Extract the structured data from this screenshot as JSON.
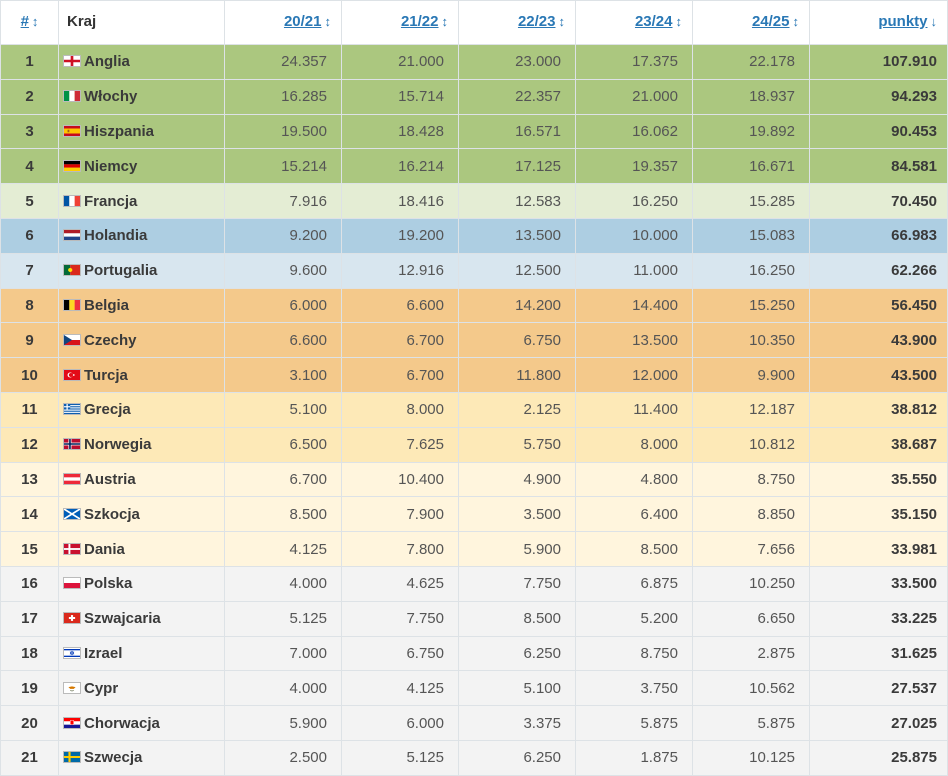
{
  "header": {
    "pos_label": "#",
    "country_label": "Kraj",
    "seasons": [
      "20/21",
      "21/22",
      "22/23",
      "23/24",
      "24/25"
    ],
    "points_label": "punkty",
    "sort_icon": "↕",
    "sort_active_icon": "↓"
  },
  "colors": {
    "cl": "#abc77f",
    "cl_light": "#e4edd4",
    "blue": "#adcee2",
    "blue_light": "#d8e6ef",
    "orange": "#f4c98b",
    "yellow": "#fde9b7",
    "yellow_light": "#fff5dd",
    "gray": "#f3f3f3"
  },
  "rows": [
    {
      "pos": "1",
      "country": "Anglia",
      "flag": "england-flag",
      "zone": "cl",
      "s1": "24.357",
      "s2": "21.000",
      "s3": "23.000",
      "s4": "17.375",
      "s5": "22.178",
      "pts": "107.910"
    },
    {
      "pos": "2",
      "country": "Włochy",
      "flag": "italy-flag",
      "zone": "cl",
      "s1": "16.285",
      "s2": "15.714",
      "s3": "22.357",
      "s4": "21.000",
      "s5": "18.937",
      "pts": "94.293"
    },
    {
      "pos": "3",
      "country": "Hiszpania",
      "flag": "spain-flag",
      "zone": "cl",
      "s1": "19.500",
      "s2": "18.428",
      "s3": "16.571",
      "s4": "16.062",
      "s5": "19.892",
      "pts": "90.453"
    },
    {
      "pos": "4",
      "country": "Niemcy",
      "flag": "germany-flag",
      "zone": "cl",
      "s1": "15.214",
      "s2": "16.214",
      "s3": "17.125",
      "s4": "19.357",
      "s5": "16.671",
      "pts": "84.581"
    },
    {
      "pos": "5",
      "country": "Francja",
      "flag": "france-flag",
      "zone": "cl_light",
      "s1": "7.916",
      "s2": "18.416",
      "s3": "12.583",
      "s4": "16.250",
      "s5": "15.285",
      "pts": "70.450"
    },
    {
      "pos": "6",
      "country": "Holandia",
      "flag": "netherlands-flag",
      "zone": "blue",
      "s1": "9.200",
      "s2": "19.200",
      "s3": "13.500",
      "s4": "10.000",
      "s5": "15.083",
      "pts": "66.983"
    },
    {
      "pos": "7",
      "country": "Portugalia",
      "flag": "portugal-flag",
      "zone": "blue_light",
      "s1": "9.600",
      "s2": "12.916",
      "s3": "12.500",
      "s4": "11.000",
      "s5": "16.250",
      "pts": "62.266"
    },
    {
      "pos": "8",
      "country": "Belgia",
      "flag": "belgium-flag",
      "zone": "orange",
      "s1": "6.000",
      "s2": "6.600",
      "s3": "14.200",
      "s4": "14.400",
      "s5": "15.250",
      "pts": "56.450"
    },
    {
      "pos": "9",
      "country": "Czechy",
      "flag": "czechia-flag",
      "zone": "orange",
      "s1": "6.600",
      "s2": "6.700",
      "s3": "6.750",
      "s4": "13.500",
      "s5": "10.350",
      "pts": "43.900"
    },
    {
      "pos": "10",
      "country": "Turcja",
      "flag": "turkey-flag",
      "zone": "orange",
      "s1": "3.100",
      "s2": "6.700",
      "s3": "11.800",
      "s4": "12.000",
      "s5": "9.900",
      "pts": "43.500"
    },
    {
      "pos": "11",
      "country": "Grecja",
      "flag": "greece-flag",
      "zone": "yellow",
      "s1": "5.100",
      "s2": "8.000",
      "s3": "2.125",
      "s4": "11.400",
      "s5": "12.187",
      "pts": "38.812"
    },
    {
      "pos": "12",
      "country": "Norwegia",
      "flag": "norway-flag",
      "zone": "yellow",
      "s1": "6.500",
      "s2": "7.625",
      "s3": "5.750",
      "s4": "8.000",
      "s5": "10.812",
      "pts": "38.687"
    },
    {
      "pos": "13",
      "country": "Austria",
      "flag": "austria-flag",
      "zone": "yellow_light",
      "s1": "6.700",
      "s2": "10.400",
      "s3": "4.900",
      "s4": "4.800",
      "s5": "8.750",
      "pts": "35.550"
    },
    {
      "pos": "14",
      "country": "Szkocja",
      "flag": "scotland-flag",
      "zone": "yellow_light",
      "s1": "8.500",
      "s2": "7.900",
      "s3": "3.500",
      "s4": "6.400",
      "s5": "8.850",
      "pts": "35.150"
    },
    {
      "pos": "15",
      "country": "Dania",
      "flag": "denmark-flag",
      "zone": "yellow_light",
      "s1": "4.125",
      "s2": "7.800",
      "s3": "5.900",
      "s4": "8.500",
      "s5": "7.656",
      "pts": "33.981"
    },
    {
      "pos": "16",
      "country": "Polska",
      "flag": "poland-flag",
      "zone": "gray",
      "s1": "4.000",
      "s2": "4.625",
      "s3": "7.750",
      "s4": "6.875",
      "s5": "10.250",
      "pts": "33.500"
    },
    {
      "pos": "17",
      "country": "Szwajcaria",
      "flag": "switzerland-flag",
      "zone": "gray",
      "s1": "5.125",
      "s2": "7.750",
      "s3": "8.500",
      "s4": "5.200",
      "s5": "6.650",
      "pts": "33.225"
    },
    {
      "pos": "18",
      "country": "Izrael",
      "flag": "israel-flag",
      "zone": "gray",
      "s1": "7.000",
      "s2": "6.750",
      "s3": "6.250",
      "s4": "8.750",
      "s5": "2.875",
      "pts": "31.625"
    },
    {
      "pos": "19",
      "country": "Cypr",
      "flag": "cyprus-flag",
      "zone": "gray",
      "s1": "4.000",
      "s2": "4.125",
      "s3": "5.100",
      "s4": "3.750",
      "s5": "10.562",
      "pts": "27.537"
    },
    {
      "pos": "20",
      "country": "Chorwacja",
      "flag": "croatia-flag",
      "zone": "gray",
      "s1": "5.900",
      "s2": "6.000",
      "s3": "3.375",
      "s4": "5.875",
      "s5": "5.875",
      "pts": "27.025"
    },
    {
      "pos": "21",
      "country": "Szwecja",
      "flag": "sweden-flag",
      "zone": "gray",
      "s1": "2.500",
      "s2": "5.125",
      "s3": "6.250",
      "s4": "1.875",
      "s5": "10.125",
      "pts": "25.875"
    }
  ]
}
